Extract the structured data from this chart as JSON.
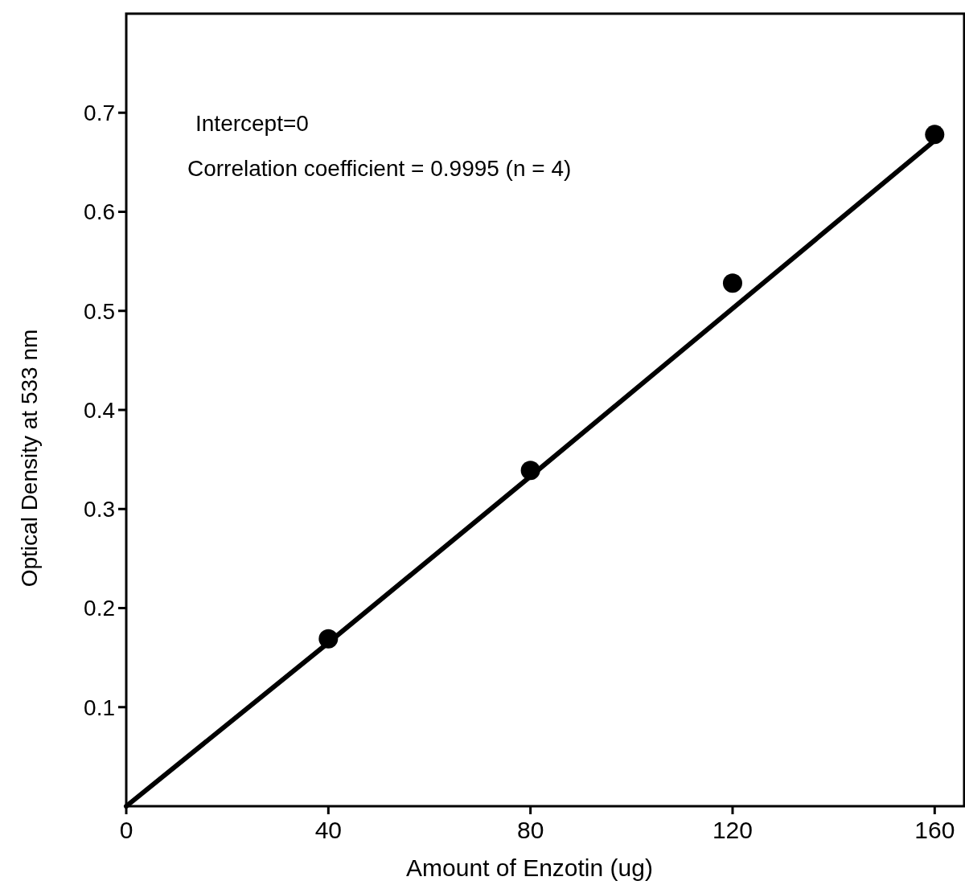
{
  "chart_data": {
    "type": "scatter",
    "xlabel": "Amount of Enzotin (ug)",
    "ylabel": "Optical Density at 533 nm",
    "xlim": [
      0,
      166
    ],
    "ylim": [
      0,
      0.8
    ],
    "xticks": [
      0,
      40,
      80,
      120,
      160
    ],
    "yticks": [
      0.1,
      0.2,
      0.3,
      0.4,
      0.5,
      0.6,
      0.7
    ],
    "grid": false,
    "annotations": [
      "Intercept=0",
      "Correlation coefficient = 0.9995 (n = 4)"
    ],
    "series": [
      {
        "color": "#000000",
        "marker": "circle",
        "x": [
          40,
          80,
          120,
          160
        ],
        "values": [
          0.169,
          0.339,
          0.528,
          0.678
        ]
      },
      {
        "type": "line",
        "color": "#000000",
        "marker": "none",
        "line_style": "solid",
        "x": [
          0,
          40,
          80,
          110,
          160
        ],
        "values": [
          0,
          0.165,
          0.333,
          0.46,
          0.672
        ]
      }
    ]
  }
}
